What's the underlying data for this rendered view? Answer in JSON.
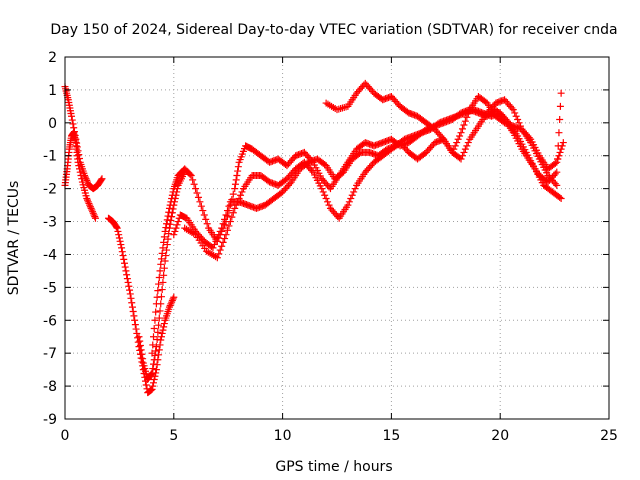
{
  "chart_data": {
    "type": "scatter",
    "title": "Day 150 of 2024, Sidereal Day-to-day VTEC variation (SDTVAR) for receiver cnda",
    "xlabel": "GPS time / hours",
    "ylabel": "SDTVAR / TECUs",
    "xlim": [
      0,
      25
    ],
    "ylim": [
      -9,
      2
    ],
    "xticks": [
      "0",
      "5",
      "10",
      "15",
      "20",
      "25"
    ],
    "yticks": [
      "-9",
      "-8",
      "-7",
      "-6",
      "-5",
      "-4",
      "-3",
      "-2",
      "-1",
      "0",
      "1",
      "2"
    ],
    "grid": true,
    "marker": "+",
    "color": "#ff0000",
    "series": [
      {
        "x": [
          0.0,
          0.15,
          0.3,
          0.5,
          0.7,
          0.9,
          1.1,
          1.3,
          1.5,
          1.7
        ],
        "y": [
          1.1,
          0.7,
          0.2,
          -0.5,
          -1.2,
          -1.6,
          -1.9,
          -2.0,
          -1.9,
          -1.7
        ]
      },
      {
        "x": [
          0.0,
          0.1,
          0.2,
          0.3,
          0.4,
          0.5,
          0.6,
          0.8,
          1.0,
          1.2,
          1.4
        ],
        "y": [
          -1.9,
          -1.4,
          -0.8,
          -0.4,
          -0.3,
          -0.6,
          -1.2,
          -1.8,
          -2.3,
          -2.6,
          -2.9
        ]
      },
      {
        "x": [
          2.0,
          2.2,
          2.4,
          2.6,
          2.8,
          3.0,
          3.2,
          3.4,
          3.6,
          3.8,
          4.0,
          4.2,
          4.4,
          4.6,
          4.8,
          5.0
        ],
        "y": [
          -2.9,
          -3.0,
          -3.2,
          -3.8,
          -4.5,
          -5.2,
          -6.0,
          -6.8,
          -7.5,
          -8.2,
          -8.1,
          -7.5,
          -6.6,
          -6.0,
          -5.6,
          -5.3
        ]
      },
      {
        "x": [
          3.4,
          3.6,
          3.8,
          4.0,
          4.2,
          4.4,
          4.6,
          4.8,
          5.0,
          5.2,
          5.5
        ],
        "y": [
          -6.5,
          -7.3,
          -7.8,
          -7.6,
          -6.8,
          -5.5,
          -4.2,
          -3.2,
          -2.5,
          -1.9,
          -1.5
        ]
      },
      {
        "x": [
          4.0,
          4.2,
          4.4,
          4.6,
          4.8,
          5.0,
          5.2,
          5.5,
          5.8,
          6.2,
          6.6,
          7.0,
          7.4,
          7.8,
          8.0,
          8.3,
          8.6,
          9.0,
          9.4,
          9.8,
          10.2,
          10.6,
          11.0,
          11.4,
          11.8,
          12.2,
          12.6,
          13.0,
          13.4,
          13.8,
          14.2,
          14.6,
          15.0,
          15.4,
          15.8,
          16.2,
          16.6,
          17.0,
          17.4,
          17.8,
          18.2,
          18.6,
          19.0,
          19.4,
          19.8,
          20.2,
          20.6,
          21.0,
          21.4,
          21.8,
          22.2,
          22.6,
          22.8
        ],
        "y": [
          -7.0,
          -5.5,
          -4.3,
          -3.3,
          -2.6,
          -2.0,
          -1.6,
          -1.4,
          -1.6,
          -2.4,
          -3.2,
          -3.6,
          -3.0,
          -2.0,
          -1.2,
          -0.7,
          -0.8,
          -1.0,
          -1.2,
          -1.1,
          -1.3,
          -1.0,
          -0.9,
          -1.2,
          -1.7,
          -2.0,
          -1.6,
          -1.2,
          -0.8,
          -0.6,
          -0.7,
          -0.6,
          -0.5,
          -0.7,
          -0.6,
          -0.4,
          -0.2,
          -0.1,
          0.0,
          0.1,
          0.3,
          0.4,
          0.3,
          0.2,
          0.4,
          0.1,
          -0.3,
          -0.8,
          -1.2,
          -1.6,
          -1.8,
          -1.5,
          0.9
        ]
      },
      {
        "x": [
          5.0,
          5.3,
          5.6,
          6.0,
          6.4,
          6.8,
          7.2,
          7.6,
          8.0,
          8.4,
          8.8,
          9.2,
          9.6,
          10.0,
          10.4,
          10.8,
          11.2,
          11.6,
          12.0,
          12.4,
          12.8,
          13.2,
          13.6,
          14.0,
          14.4,
          14.8,
          15.2,
          15.6,
          16.0,
          16.4,
          16.8,
          17.2,
          17.6,
          18.0,
          18.4,
          18.8,
          19.2,
          19.6,
          20.0,
          20.4,
          20.8,
          21.2,
          21.6,
          22.0,
          22.4,
          22.8
        ],
        "y": [
          -3.4,
          -2.8,
          -2.9,
          -3.3,
          -3.6,
          -3.8,
          -3.2,
          -2.4,
          -2.4,
          -2.5,
          -2.6,
          -2.5,
          -2.3,
          -2.1,
          -1.8,
          -1.4,
          -1.2,
          -1.1,
          -1.3,
          -1.7,
          -1.5,
          -1.1,
          -0.9,
          -0.9,
          -1.0,
          -0.8,
          -0.7,
          -0.5,
          -0.4,
          -0.3,
          -0.2,
          0.0,
          0.1,
          0.2,
          0.3,
          0.4,
          0.3,
          0.2,
          0.3,
          0.0,
          -0.4,
          -0.9,
          -1.4,
          -1.9,
          -2.1,
          -2.3
        ]
      },
      {
        "x": [
          5.5,
          6.0,
          6.5,
          7.0,
          7.4,
          7.8,
          8.2,
          8.6,
          9.0,
          9.4,
          9.8,
          10.2,
          10.6,
          11.0,
          11.4,
          11.8,
          12.2,
          12.6,
          13.0,
          13.4,
          13.8,
          14.2,
          14.6,
          15.0,
          15.4,
          15.8,
          16.2,
          16.6,
          17.0,
          17.4,
          17.8,
          18.2,
          18.6,
          19.0,
          19.4,
          19.8,
          20.2,
          20.6,
          21.0,
          21.4,
          21.8,
          22.2,
          22.6
        ],
        "y": [
          -3.2,
          -3.4,
          -3.9,
          -4.1,
          -3.4,
          -2.6,
          -2.0,
          -1.6,
          -1.6,
          -1.8,
          -1.9,
          -1.7,
          -1.4,
          -1.2,
          -1.5,
          -2.0,
          -2.6,
          -2.9,
          -2.5,
          -1.9,
          -1.5,
          -1.2,
          -1.0,
          -0.8,
          -0.6,
          -0.9,
          -1.1,
          -0.9,
          -0.6,
          -0.5,
          -0.9,
          -1.1,
          -0.5,
          -0.1,
          0.3,
          0.6,
          0.7,
          0.4,
          -0.2,
          -0.6,
          -1.1,
          -1.6,
          -1.9
        ]
      },
      {
        "x": [
          12.0,
          12.5,
          13.0,
          13.4,
          13.8,
          14.2,
          14.6,
          15.0,
          15.4,
          15.8,
          16.2,
          16.6,
          17.0,
          17.4,
          17.8,
          18.2,
          18.6,
          19.0,
          19.4,
          19.8,
          20.2,
          20.6,
          21.0,
          21.4,
          21.8,
          22.2,
          22.6,
          22.9
        ],
        "y": [
          0.6,
          0.4,
          0.5,
          0.9,
          1.2,
          0.9,
          0.7,
          0.8,
          0.5,
          0.3,
          0.2,
          0.0,
          -0.2,
          -0.5,
          -0.9,
          -0.3,
          0.4,
          0.8,
          0.6,
          0.2,
          0.0,
          -0.1,
          -0.2,
          -0.5,
          -1.0,
          -1.4,
          -1.2,
          -0.6
        ]
      }
    ]
  }
}
